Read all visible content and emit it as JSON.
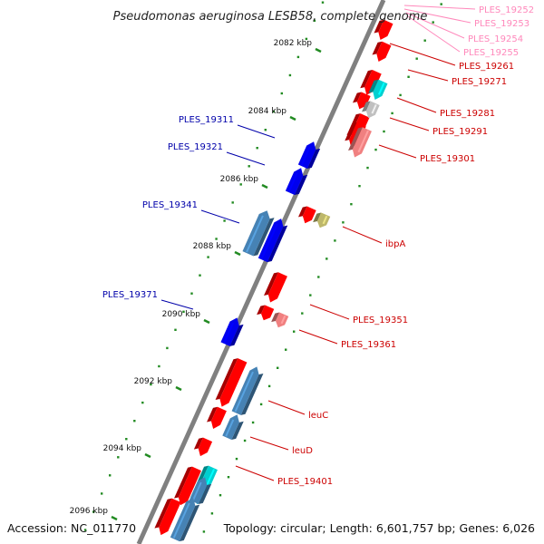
{
  "title": "Pseudomonas aeruginosa LESB58, complete genome",
  "footer": {
    "accession": "Accession: NC_011770",
    "stats": "Topology: circular; Length: 6,601,757 bp; Genes: 6,026"
  },
  "colors": {
    "forward_gene": "#ff0000",
    "forward_gene_faded": "#f08080",
    "reverse_gene": "#0000ee",
    "reverse_pseudo": "#4682b4",
    "cyan_gene": "#00d0d0",
    "grey_gene": "#c0c0c0",
    "olive_gene": "#bdb76b",
    "backbone": "#808080",
    "tick": "#228b22",
    "label_forward": "#cc0000",
    "label_forward_faded": "#ff88bb",
    "label_reverse": "#0000aa"
  },
  "kbp_ticks": [
    {
      "label": "2082 kbp"
    },
    {
      "label": "2084 kbp"
    },
    {
      "label": "2086 kbp"
    },
    {
      "label": "2088 kbp"
    },
    {
      "label": "2090 kbp"
    },
    {
      "label": "2092 kbp"
    },
    {
      "label": "2094 kbp"
    },
    {
      "label": "2096 kbp"
    }
  ],
  "forward_labels": [
    {
      "text": "PLES_19252",
      "faded": true
    },
    {
      "text": "PLES_19253",
      "faded": true
    },
    {
      "text": "PLES_19254",
      "faded": true
    },
    {
      "text": "PLES_19255",
      "faded": true
    },
    {
      "text": "PLES_19261",
      "faded": false
    },
    {
      "text": "PLES_19271",
      "faded": false
    },
    {
      "text": "PLES_19281",
      "faded": false
    },
    {
      "text": "PLES_19291",
      "faded": false
    },
    {
      "text": "PLES_19301",
      "faded": false
    },
    {
      "text": "ibpA",
      "faded": false
    },
    {
      "text": "PLES_19351",
      "faded": false
    },
    {
      "text": "PLES_19361",
      "faded": false
    },
    {
      "text": "leuC",
      "faded": false
    },
    {
      "text": "leuD",
      "faded": false
    },
    {
      "text": "PLES_19401",
      "faded": false
    }
  ],
  "reverse_labels": [
    {
      "text": "PLES_19311"
    },
    {
      "text": "PLES_19321"
    },
    {
      "text": "PLES_19341"
    },
    {
      "text": "PLES_19371"
    }
  ],
  "forward_genes": [
    {
      "kind": "forward_gene"
    },
    {
      "kind": "forward_gene"
    },
    {
      "kind": "forward_gene"
    },
    {
      "kind": "forward_gene"
    },
    {
      "kind": "cyan_gene"
    },
    {
      "kind": "forward_gene"
    },
    {
      "kind": "grey_gene"
    },
    {
      "kind": "forward_gene"
    },
    {
      "kind": "forward_gene_faded"
    },
    {
      "kind": "forward_gene"
    },
    {
      "kind": "olive_gene"
    },
    {
      "kind": "forward_gene"
    },
    {
      "kind": "forward_gene"
    },
    {
      "kind": "forward_gene_faded"
    },
    {
      "kind": "forward_gene"
    },
    {
      "kind": "forward_gene"
    },
    {
      "kind": "forward_gene"
    },
    {
      "kind": "forward_gene"
    },
    {
      "kind": "cyan_gene"
    },
    {
      "kind": "forward_gene"
    }
  ],
  "reverse_genes": [
    {
      "kind": "reverse_gene"
    },
    {
      "kind": "reverse_gene"
    },
    {
      "kind": "reverse_pseudo"
    },
    {
      "kind": "reverse_gene"
    },
    {
      "kind": "reverse_gene"
    },
    {
      "kind": "reverse_pseudo"
    },
    {
      "kind": "reverse_pseudo"
    },
    {
      "kind": "reverse_pseudo"
    },
    {
      "kind": "reverse_pseudo"
    }
  ]
}
